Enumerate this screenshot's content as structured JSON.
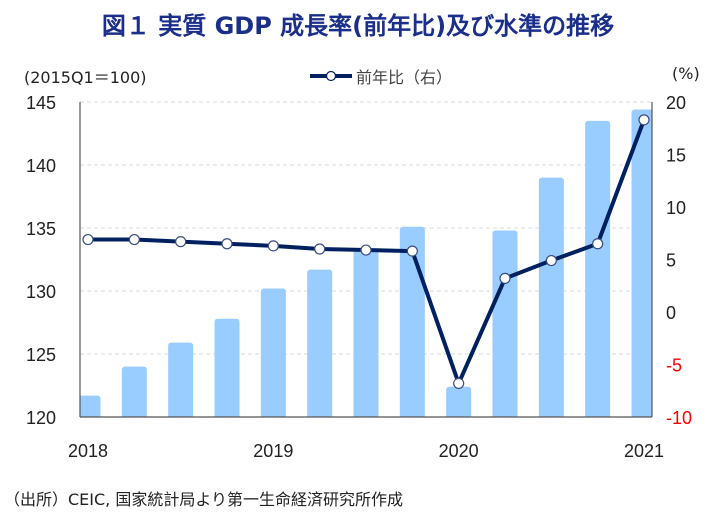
{
  "title": "図１ 実質 GDP 成長率(前年比)及び水準の推移",
  "unit_left": "(2015Q1＝100)",
  "unit_right": "(%)",
  "legend": {
    "line_label": "前年比（右）"
  },
  "source": "（出所）CEIC, 国家統計局より第一生命経済研究所作成",
  "colors": {
    "bar": "#99ccff",
    "line": "#002060",
    "title": "#1b2f8a",
    "negative_tick": "#ff0000"
  },
  "chart_data": {
    "type": "bar+line",
    "title": "図１ 実質 GDP 成長率(前年比)及び水準の推移",
    "categories": [
      "2018Q1",
      "2018Q2",
      "2018Q3",
      "2018Q4",
      "2019Q1",
      "2019Q2",
      "2019Q3",
      "2019Q4",
      "2020Q1",
      "2020Q2",
      "2020Q3",
      "2020Q4",
      "2021Q1"
    ],
    "x_tick_labels": [
      {
        "index": 0,
        "label": "2018"
      },
      {
        "index": 4,
        "label": "2019"
      },
      {
        "index": 8,
        "label": "2020"
      },
      {
        "index": 12,
        "label": "2021"
      }
    ],
    "series": [
      {
        "name": "実質GDP水準 (2015Q1=100)",
        "type": "bar",
        "axis": "left",
        "values": [
          121.7,
          124.0,
          125.9,
          127.8,
          130.2,
          131.7,
          133.3,
          135.1,
          122.4,
          134.8,
          139.0,
          143.5,
          144.4
        ]
      },
      {
        "name": "前年比（右）",
        "type": "line",
        "axis": "right",
        "values": [
          6.9,
          6.9,
          6.7,
          6.5,
          6.3,
          6.0,
          5.9,
          5.8,
          -6.8,
          3.2,
          4.9,
          6.5,
          18.3
        ]
      }
    ],
    "left_axis": {
      "label": "(2015Q1＝100)",
      "ylim": [
        120,
        145
      ],
      "ticks": [
        120,
        125,
        130,
        135,
        140,
        145
      ]
    },
    "right_axis": {
      "label": "(%)",
      "ylim": [
        -10,
        20
      ],
      "ticks": [
        -10,
        -5,
        0,
        5,
        10,
        15,
        20
      ]
    },
    "grid": "horizontal dashed (left axis)",
    "legend_position": "top-center"
  }
}
